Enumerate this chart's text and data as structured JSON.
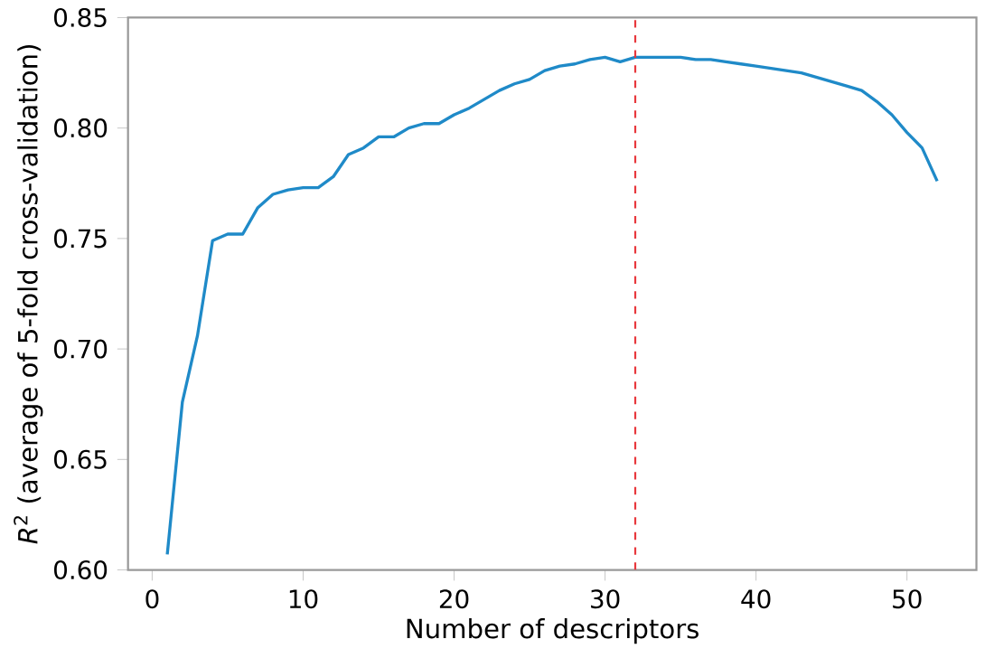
{
  "chart_data": {
    "type": "line",
    "xlabel": "Number of descriptors",
    "ylabel": "*R*$^{2}$ (average of 5-fold cross-validation)",
    "x": [
      1,
      2,
      3,
      4,
      5,
      6,
      7,
      8,
      9,
      10,
      11,
      12,
      13,
      14,
      15,
      16,
      17,
      18,
      19,
      20,
      21,
      22,
      23,
      24,
      25,
      26,
      27,
      28,
      29,
      30,
      31,
      32,
      33,
      34,
      35,
      36,
      37,
      38,
      39,
      40,
      41,
      42,
      43,
      44,
      45,
      46,
      47,
      48,
      49,
      50,
      51,
      52
    ],
    "series": [
      {
        "color": "#1f8ac8",
        "values": [
          0.607,
          0.676,
          0.706,
          0.749,
          0.752,
          0.752,
          0.764,
          0.77,
          0.772,
          0.773,
          0.773,
          0.778,
          0.788,
          0.791,
          0.796,
          0.796,
          0.8,
          0.802,
          0.802,
          0.806,
          0.809,
          0.813,
          0.817,
          0.82,
          0.822,
          0.826,
          0.828,
          0.829,
          0.831,
          0.832,
          0.83,
          0.832,
          0.832,
          0.832,
          0.832,
          0.831,
          0.831,
          0.83,
          0.829,
          0.828,
          0.827,
          0.826,
          0.825,
          0.823,
          0.821,
          0.819,
          0.817,
          0.812,
          0.806,
          0.798,
          0.791,
          0.776
        ]
      }
    ],
    "xlim": [
      -1.6,
      54.6
    ],
    "ylim": [
      0.6,
      0.85
    ],
    "xticks": [
      0,
      10,
      20,
      30,
      40,
      50
    ],
    "yticks": [
      {
        "value": 0.6,
        "label": "0.60"
      },
      {
        "value": 0.65,
        "label": "0.65"
      },
      {
        "value": 0.7,
        "label": "0.70"
      },
      {
        "value": 0.75,
        "label": "0.75"
      },
      {
        "value": 0.8,
        "label": "0.80"
      },
      {
        "value": 0.85,
        "label": "0.85"
      }
    ],
    "ref_lines": [
      {
        "axis": "x",
        "value": 32,
        "color": "#e8383d",
        "line_style": "dashed"
      }
    ],
    "grid": false,
    "marker": "none",
    "line_style": "solid"
  }
}
